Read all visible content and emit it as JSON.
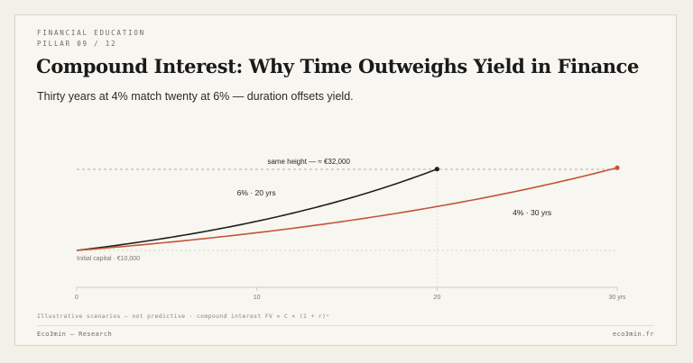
{
  "header": {
    "kicker": "FINANCIAL EDUCATION",
    "pillar": "PILLAR 09 / 12",
    "title": "Compound Interest: Why Time Outweighs Yield in Finance",
    "subtitle": "Thirty years at 4% match twenty at 6% — duration offsets yield."
  },
  "footer": {
    "note": "Illustrative scenarios — not predictive · compound interest FV = C × (1 + r)ⁿ",
    "brand": "Eco3min — Research",
    "site": "eco3min.fr"
  },
  "colors": {
    "series_6": "#1f1f1f",
    "series_4": "#c4553a",
    "grid": "#9a958b",
    "axis": "#cfc9bd"
  },
  "chart_data": {
    "type": "line",
    "xlim": [
      0,
      30
    ],
    "x_ticks": [
      0,
      10,
      20,
      30
    ],
    "x_tick_labels": [
      "0",
      "10",
      "20",
      "30 yrs"
    ],
    "ylim": [
      10000,
      32000
    ],
    "series": [
      {
        "name": "6% · 20 yrs",
        "rate": 0.06,
        "years": 20,
        "color": "#1f1f1f",
        "points": [
          [
            0,
            10000
          ],
          [
            5,
            13382
          ],
          [
            10,
            17908
          ],
          [
            15,
            23966
          ],
          [
            20,
            32071
          ]
        ]
      },
      {
        "name": "4% · 30 yrs",
        "rate": 0.04,
        "years": 30,
        "color": "#c4553a",
        "points": [
          [
            0,
            10000
          ],
          [
            5,
            12167
          ],
          [
            10,
            14802
          ],
          [
            15,
            18009
          ],
          [
            20,
            21911
          ],
          [
            25,
            26658
          ],
          [
            30,
            32434
          ]
        ]
      }
    ],
    "reference_lines": [
      {
        "label": "same height — ≈ €32,000",
        "y": 32000
      },
      {
        "label": "Initial capital · €10,000",
        "y": 10000
      }
    ]
  }
}
